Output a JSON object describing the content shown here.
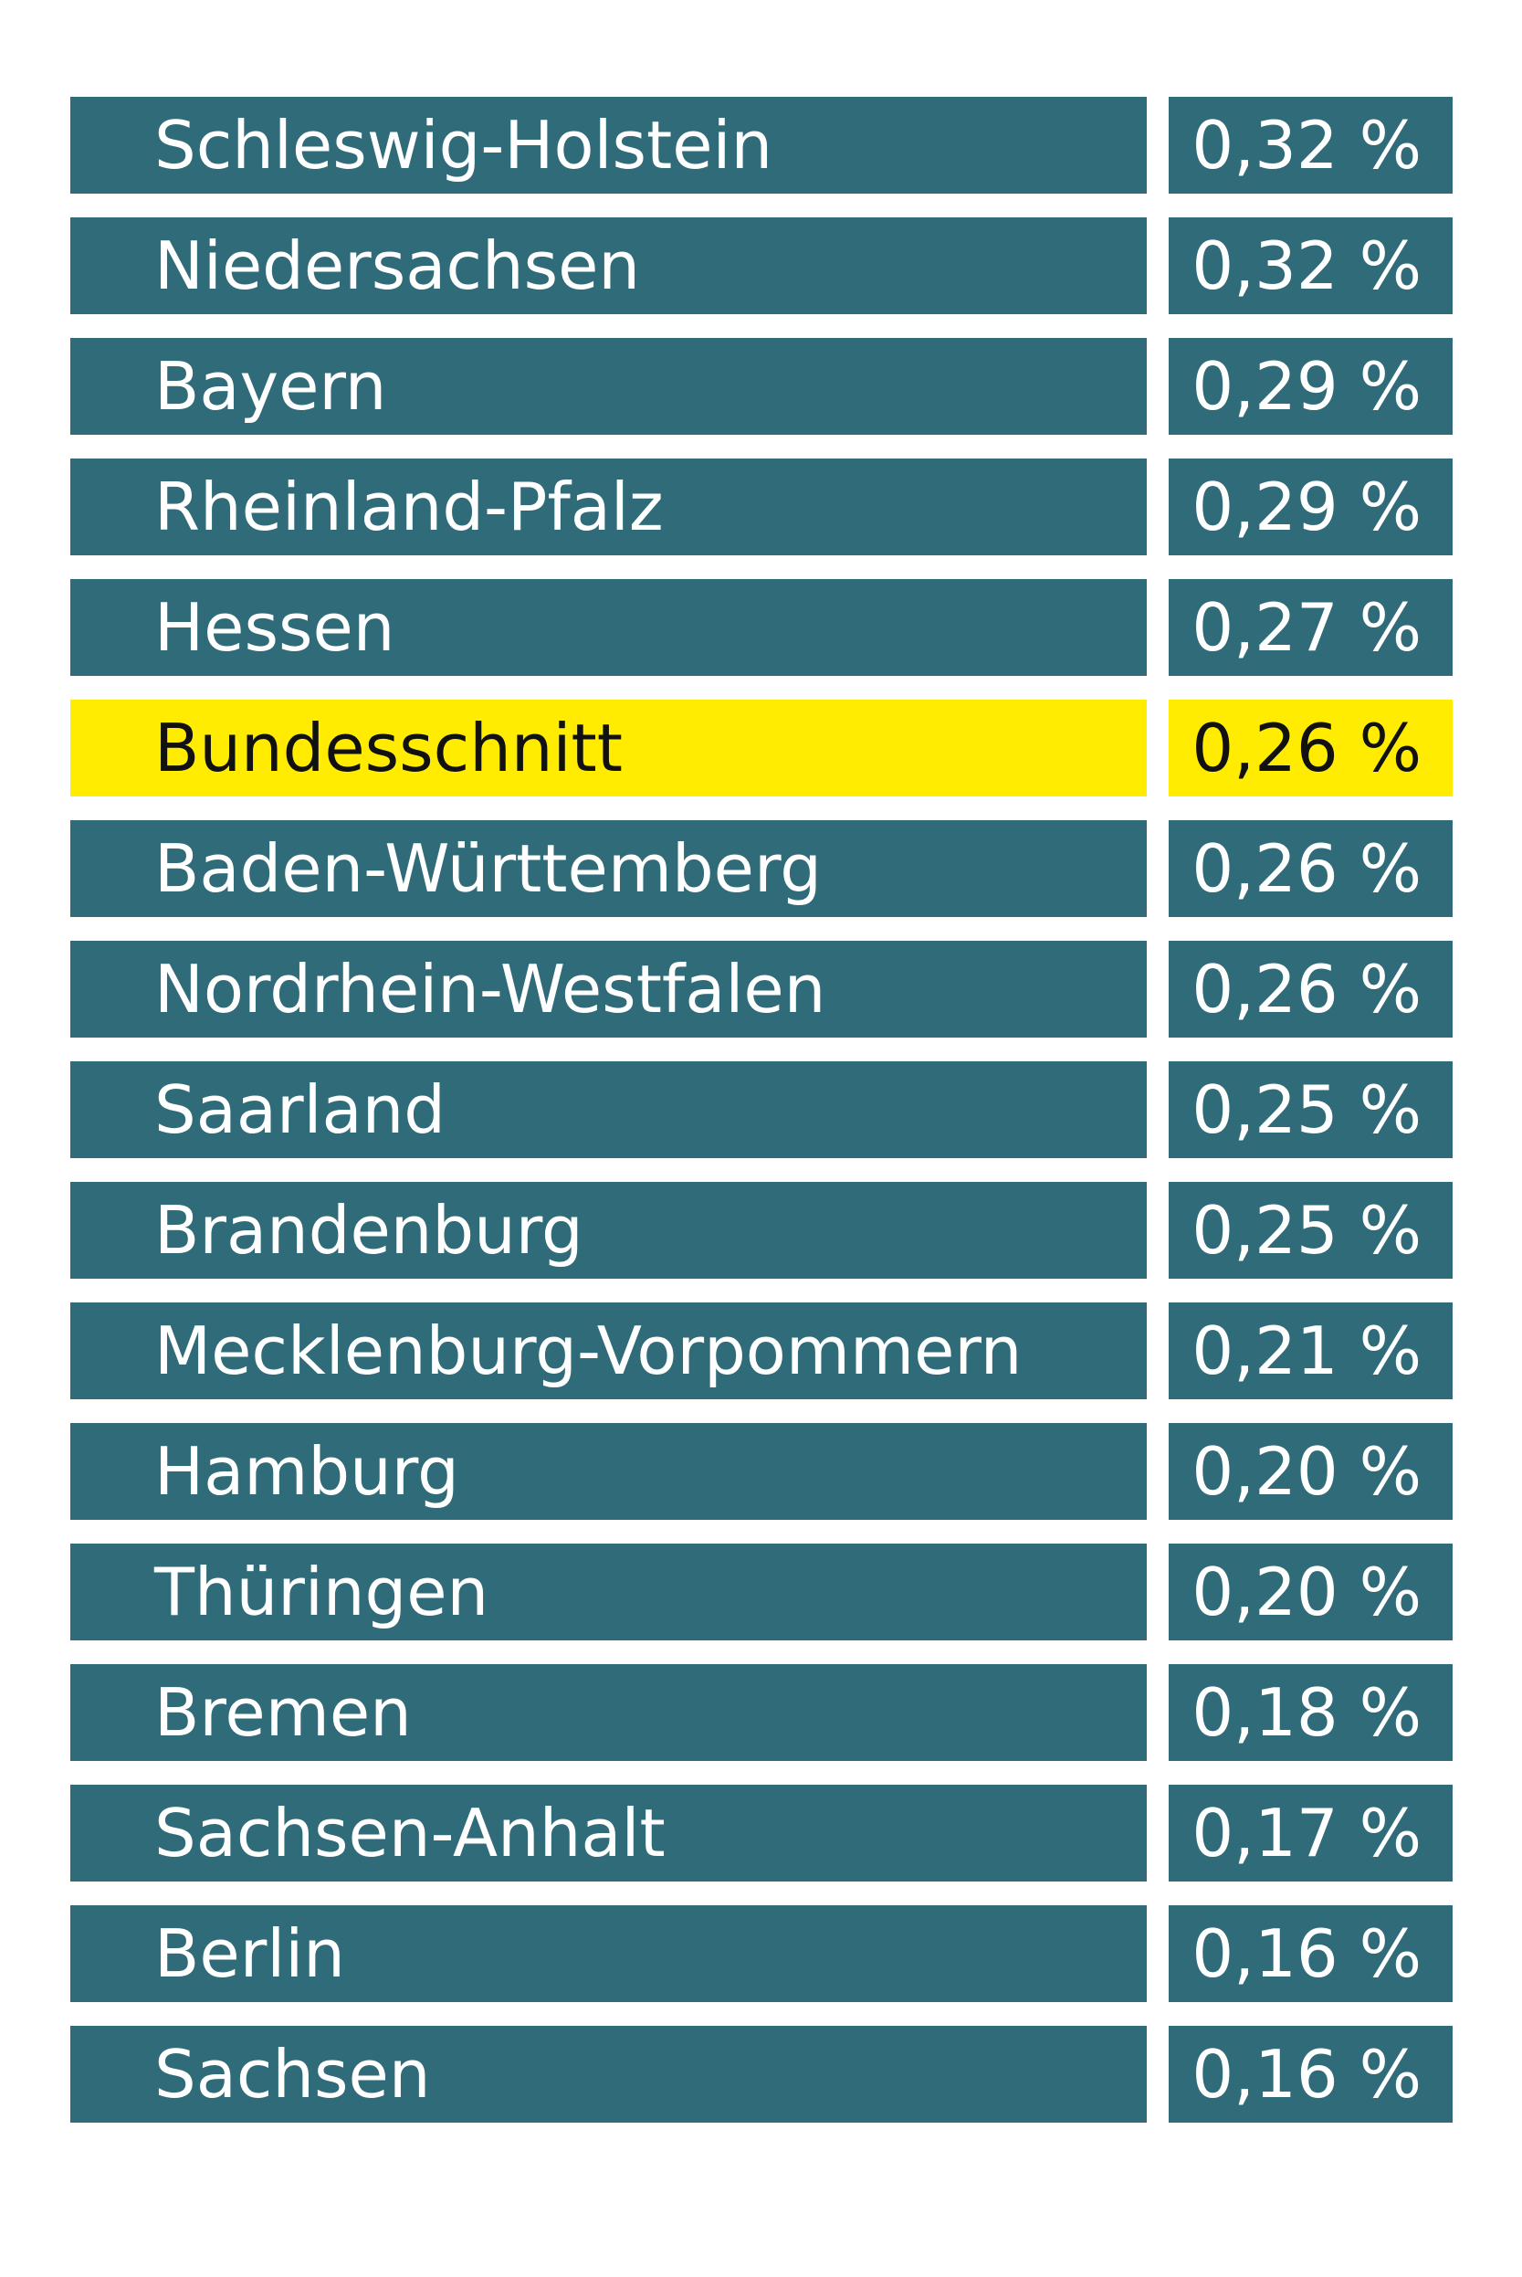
{
  "chart_data": {
    "type": "table",
    "columns": [
      "",
      ""
    ],
    "rows": [
      {
        "name": "Schleswig-Holstein",
        "value": 0.32,
        "label": "0,32 %",
        "highlight": false
      },
      {
        "name": "Niedersachsen",
        "value": 0.32,
        "label": "0,32 %",
        "highlight": false
      },
      {
        "name": "Bayern",
        "value": 0.29,
        "label": "0,29 %",
        "highlight": false
      },
      {
        "name": "Rheinland-Pfalz",
        "value": 0.29,
        "label": "0,29 %",
        "highlight": false
      },
      {
        "name": "Hessen",
        "value": 0.27,
        "label": "0,27 %",
        "highlight": false
      },
      {
        "name": "Bundesschnitt",
        "value": 0.26,
        "label": "0,26 %",
        "highlight": true
      },
      {
        "name": "Baden-Württemberg",
        "value": 0.26,
        "label": "0,26 %",
        "highlight": false
      },
      {
        "name": "Nordrhein-Westfalen",
        "value": 0.26,
        "label": "0,26 %",
        "highlight": false
      },
      {
        "name": "Saarland",
        "value": 0.25,
        "label": "0,25 %",
        "highlight": false
      },
      {
        "name": "Brandenburg",
        "value": 0.25,
        "label": "0,25 %",
        "highlight": false
      },
      {
        "name": "Mecklenburg-Vorpommern",
        "value": 0.21,
        "label": "0,21 %",
        "highlight": false
      },
      {
        "name": "Hamburg",
        "value": 0.2,
        "label": "0,20 %",
        "highlight": false
      },
      {
        "name": "Thüringen",
        "value": 0.2,
        "label": "0,20 %",
        "highlight": false
      },
      {
        "name": "Bremen",
        "value": 0.18,
        "label": "0,18 %",
        "highlight": false
      },
      {
        "name": "Sachsen-Anhalt",
        "value": 0.17,
        "label": "0,17 %",
        "highlight": false
      },
      {
        "name": "Berlin",
        "value": 0.16,
        "label": "0,16 %",
        "highlight": false
      },
      {
        "name": "Sachsen",
        "value": 0.16,
        "label": "0,16 %",
        "highlight": false
      }
    ]
  },
  "colors": {
    "row_background": "#2f6b78",
    "row_text": "#ffffff",
    "highlight_background": "#ffec00",
    "highlight_text": "#111111",
    "page_background": "#ffffff"
  }
}
